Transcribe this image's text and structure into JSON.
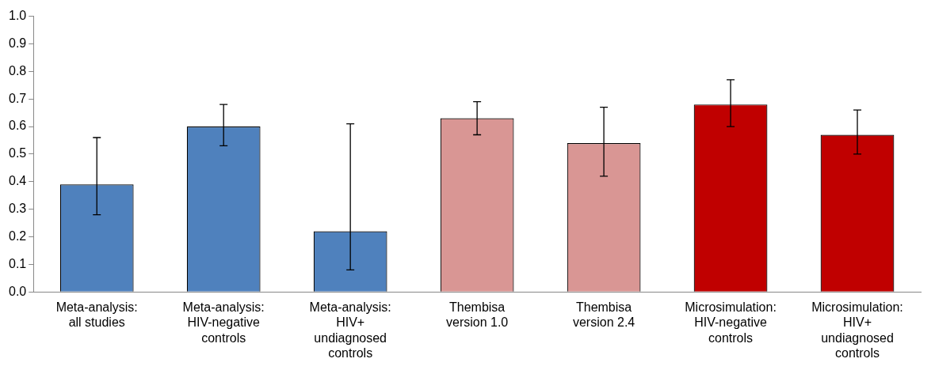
{
  "chart_data": {
    "type": "bar",
    "categories": [
      "Meta-analysis: all studies",
      "Meta-analysis: HIV-negative controls",
      "Meta-analysis: HIV+ undiagnosed controls",
      "Thembisa version 1.0",
      "Thembisa version 2.4",
      "Microsimulation: HIV-negative controls",
      "Microsimulation: HIV+ undiagnosed controls"
    ],
    "values": [
      0.39,
      0.6,
      0.22,
      0.63,
      0.54,
      0.68,
      0.57
    ],
    "colors": [
      "#4f81bd",
      "#4f81bd",
      "#4f81bd",
      "#d99694",
      "#d99694",
      "#c00000",
      "#c00000"
    ],
    "errors": [
      [
        0.28,
        0.56
      ],
      [
        0.53,
        0.68
      ],
      [
        0.08,
        0.61
      ],
      [
        0.57,
        0.69
      ],
      [
        0.42,
        0.67
      ],
      [
        0.6,
        0.77
      ],
      [
        0.5,
        0.66
      ]
    ],
    "ylim": [
      0,
      1
    ],
    "yticks": [
      {
        "value": 0,
        "label": "0.0"
      },
      {
        "value": 0.1,
        "label": "0.1"
      },
      {
        "value": 0.2,
        "label": "0.2"
      },
      {
        "value": 0.3,
        "label": "0.3"
      },
      {
        "value": 0.4,
        "label": "0.4"
      },
      {
        "value": 0.5,
        "label": "0.5"
      },
      {
        "value": 0.6,
        "label": "0.6"
      },
      {
        "value": 0.7,
        "label": "0.7"
      },
      {
        "value": 0.8,
        "label": "0.8"
      },
      {
        "value": 0.9,
        "label": "0.9"
      },
      {
        "value": 1,
        "label": "1.0"
      }
    ],
    "grid": false,
    "legend": false
  }
}
